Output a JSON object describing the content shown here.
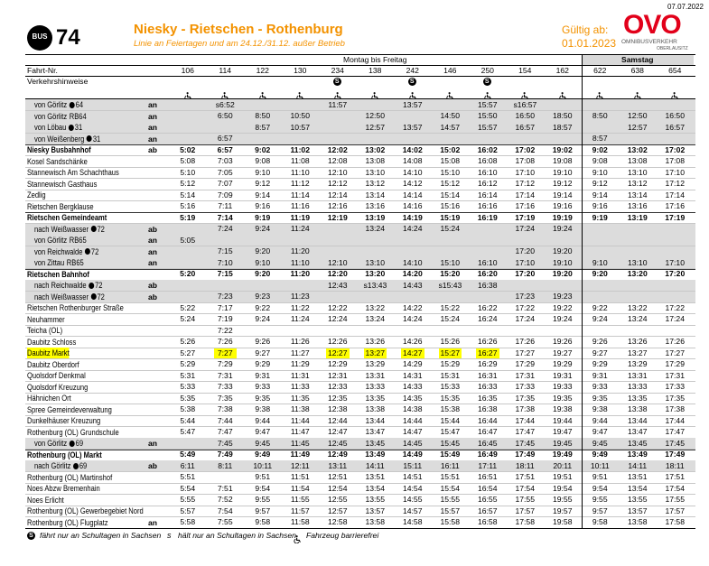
{
  "date": "07.07.2022",
  "header": {
    "badge": "BUS",
    "line": "74",
    "title": "Niesky - Rietschen - Rothenburg",
    "subtitle": "Linie an Feiertagen und am 24.12./31.12. außer Betrieb",
    "valid_label": "Gültig ab:",
    "valid_date": "01.01.2023",
    "logo": "OVO",
    "logo_sub1": "OMNIBUSVERKEHR",
    "logo_sub2": "OBERLAUSITZ"
  },
  "table": {
    "groups": [
      {
        "label": "Montag bis Freitag",
        "span": 11
      },
      {
        "label": "Samstag",
        "span": 3
      }
    ],
    "trip_label": "Fahrt-Nr.",
    "trips": [
      "106",
      "114",
      "122",
      "130",
      "234",
      "138",
      "242",
      "146",
      "250",
      "154",
      "162",
      "622",
      "638",
      "654"
    ],
    "notes_label": "Verkehrshinweise",
    "notes": [
      null,
      null,
      null,
      null,
      "S",
      null,
      "S",
      null,
      "S",
      null,
      null,
      null,
      null,
      null
    ],
    "rows": [
      {
        "stop": "von Görlitz",
        "icon": "bus",
        "line": "64",
        "dir": "an",
        "kind": "connection",
        "times": [
          null,
          "s6:52",
          null,
          null,
          "11:57",
          null,
          "13:57",
          null,
          "15:57",
          "s16:57",
          null,
          null,
          null,
          null
        ]
      },
      {
        "stop": "von Görlitz",
        "line": "RB64",
        "dir": "an",
        "kind": "connection",
        "times": [
          null,
          "6:50",
          "8:50",
          "10:50",
          null,
          "12:50",
          null,
          "14:50",
          "15:50",
          "16:50",
          "18:50",
          "8:50",
          "12:50",
          "16:50"
        ]
      },
      {
        "stop": "von Löbau",
        "icon": "bus",
        "line": "31",
        "dir": "an",
        "kind": "connection",
        "times": [
          null,
          null,
          "8:57",
          "10:57",
          null,
          "12:57",
          "13:57",
          "14:57",
          "15:57",
          "16:57",
          "18:57",
          null,
          "12:57",
          "16:57"
        ]
      },
      {
        "stop": "von Weißenberg",
        "icon": "bus",
        "line": "31",
        "dir": "an",
        "kind": "connection",
        "times": [
          null,
          "6:57",
          null,
          null,
          null,
          null,
          null,
          null,
          null,
          null,
          null,
          "8:57",
          null,
          null
        ]
      },
      {
        "stop": "Niesky Busbahnhof",
        "dir": "ab",
        "kind": "main",
        "times": [
          "5:02",
          "6:57",
          "9:02",
          "11:02",
          "12:02",
          "13:02",
          "14:02",
          "15:02",
          "16:02",
          "17:02",
          "19:02",
          "9:02",
          "13:02",
          "17:02"
        ]
      },
      {
        "stop": "Kosel Sandschänke",
        "times": [
          "5:08",
          "7:03",
          "9:08",
          "11:08",
          "12:08",
          "13:08",
          "14:08",
          "15:08",
          "16:08",
          "17:08",
          "19:08",
          "9:08",
          "13:08",
          "17:08"
        ]
      },
      {
        "stop": "Stannewisch Am Schachthaus",
        "times": [
          "5:10",
          "7:05",
          "9:10",
          "11:10",
          "12:10",
          "13:10",
          "14:10",
          "15:10",
          "16:10",
          "17:10",
          "19:10",
          "9:10",
          "13:10",
          "17:10"
        ]
      },
      {
        "stop": "Stannewisch Gasthaus",
        "times": [
          "5:12",
          "7:07",
          "9:12",
          "11:12",
          "12:12",
          "13:12",
          "14:12",
          "15:12",
          "16:12",
          "17:12",
          "19:12",
          "9:12",
          "13:12",
          "17:12"
        ]
      },
      {
        "stop": "Zedlig",
        "times": [
          "5:14",
          "7:09",
          "9:14",
          "11:14",
          "12:14",
          "13:14",
          "14:14",
          "15:14",
          "16:14",
          "17:14",
          "19:14",
          "9:14",
          "13:14",
          "17:14"
        ]
      },
      {
        "stop": "Rietschen Bergklause",
        "times": [
          "5:16",
          "7:11",
          "9:16",
          "11:16",
          "12:16",
          "13:16",
          "14:16",
          "15:16",
          "16:16",
          "17:16",
          "19:16",
          "9:16",
          "13:16",
          "17:16"
        ]
      },
      {
        "stop": "Rietschen Gemeindeamt",
        "kind": "main",
        "times": [
          "5:19",
          "7:14",
          "9:19",
          "11:19",
          "12:19",
          "13:19",
          "14:19",
          "15:19",
          "16:19",
          "17:19",
          "19:19",
          "9:19",
          "13:19",
          "17:19"
        ]
      },
      {
        "stop": "nach Weißwasser",
        "icon": "bus",
        "line": "72",
        "dir": "ab",
        "kind": "connection",
        "times": [
          null,
          "7:24",
          "9:24",
          "11:24",
          null,
          "13:24",
          "14:24",
          "15:24",
          null,
          "17:24",
          "19:24",
          null,
          null,
          null
        ]
      },
      {
        "stop": "von Görlitz",
        "line": "RB65",
        "dir": "an",
        "kind": "connection",
        "times": [
          "5:05",
          null,
          null,
          null,
          null,
          null,
          null,
          null,
          null,
          null,
          null,
          null,
          null,
          null
        ]
      },
      {
        "stop": "von Reichwalde",
        "icon": "bus",
        "line": "72",
        "dir": "an",
        "kind": "connection",
        "times": [
          null,
          "7:15",
          "9:20",
          "11:20",
          null,
          null,
          null,
          null,
          null,
          "17:20",
          "19:20",
          null,
          null,
          null
        ]
      },
      {
        "stop": "von Zittau",
        "line": "RB65",
        "dir": "an",
        "kind": "connection",
        "times": [
          null,
          "7:10",
          "9:10",
          "11:10",
          "12:10",
          "13:10",
          "14:10",
          "15:10",
          "16:10",
          "17:10",
          "19:10",
          "9:10",
          "13:10",
          "17:10"
        ]
      },
      {
        "stop": "Rietschen Bahnhof",
        "kind": "main",
        "times": [
          "5:20",
          "7:15",
          "9:20",
          "11:20",
          "12:20",
          "13:20",
          "14:20",
          "15:20",
          "16:20",
          "17:20",
          "19:20",
          "9:20",
          "13:20",
          "17:20"
        ]
      },
      {
        "stop": "nach Reichwalde",
        "icon": "bus",
        "line": "72",
        "dir": "ab",
        "kind": "connection",
        "times": [
          null,
          null,
          null,
          null,
          "12:43",
          "s13:43",
          "14:43",
          "s15:43",
          "16:38",
          null,
          null,
          null,
          null,
          null
        ]
      },
      {
        "stop": "nach Weißwasser",
        "icon": "bus",
        "line": "72",
        "dir": "ab",
        "kind": "connection",
        "times": [
          null,
          "7:23",
          "9:23",
          "11:23",
          null,
          null,
          null,
          null,
          null,
          "17:23",
          "19:23",
          null,
          null,
          null
        ]
      },
      {
        "stop": "Rietschen Rothenburger Straße",
        "times": [
          "5:22",
          "7:17",
          "9:22",
          "11:22",
          "12:22",
          "13:22",
          "14:22",
          "15:22",
          "16:22",
          "17:22",
          "19:22",
          "9:22",
          "13:22",
          "17:22"
        ]
      },
      {
        "stop": "Neuhammer",
        "times": [
          "5:24",
          "7:19",
          "9:24",
          "11:24",
          "12:24",
          "13:24",
          "14:24",
          "15:24",
          "16:24",
          "17:24",
          "19:24",
          "9:24",
          "13:24",
          "17:24"
        ]
      },
      {
        "stop": "Teicha (OL)",
        "times": [
          null,
          "7:22",
          null,
          null,
          null,
          null,
          null,
          null,
          null,
          null,
          null,
          null,
          null,
          null
        ]
      },
      {
        "stop": "Daubitz Schloss",
        "times": [
          "5:26",
          "7:26",
          "9:26",
          "11:26",
          "12:26",
          "13:26",
          "14:26",
          "15:26",
          "16:26",
          "17:26",
          "19:26",
          "9:26",
          "13:26",
          "17:26"
        ]
      },
      {
        "stop": "Daubitz Markt",
        "highlight": [
          1,
          4,
          5,
          6,
          7,
          8
        ],
        "times": [
          "5:27",
          "7:27",
          "9:27",
          "11:27",
          "12:27",
          "13:27",
          "14:27",
          "15:27",
          "16:27",
          "17:27",
          "19:27",
          "9:27",
          "13:27",
          "17:27"
        ]
      },
      {
        "stop": "Daubitz Oberdorf",
        "times": [
          "5:29",
          "7:29",
          "9:29",
          "11:29",
          "12:29",
          "13:29",
          "14:29",
          "15:29",
          "16:29",
          "17:29",
          "19:29",
          "9:29",
          "13:29",
          "17:29"
        ]
      },
      {
        "stop": "Quolsdorf Denkmal",
        "times": [
          "5:31",
          "7:31",
          "9:31",
          "11:31",
          "12:31",
          "13:31",
          "14:31",
          "15:31",
          "16:31",
          "17:31",
          "19:31",
          "9:31",
          "13:31",
          "17:31"
        ]
      },
      {
        "stop": "Quolsdorf Kreuzung",
        "times": [
          "5:33",
          "7:33",
          "9:33",
          "11:33",
          "12:33",
          "13:33",
          "14:33",
          "15:33",
          "16:33",
          "17:33",
          "19:33",
          "9:33",
          "13:33",
          "17:33"
        ]
      },
      {
        "stop": "Hähnichen Ort",
        "times": [
          "5:35",
          "7:35",
          "9:35",
          "11:35",
          "12:35",
          "13:35",
          "14:35",
          "15:35",
          "16:35",
          "17:35",
          "19:35",
          "9:35",
          "13:35",
          "17:35"
        ]
      },
      {
        "stop": "Spree Gemeindeverwaltung",
        "times": [
          "5:38",
          "7:38",
          "9:38",
          "11:38",
          "12:38",
          "13:38",
          "14:38",
          "15:38",
          "16:38",
          "17:38",
          "19:38",
          "9:38",
          "13:38",
          "17:38"
        ]
      },
      {
        "stop": "Dunkelhäuser Kreuzung",
        "times": [
          "5:44",
          "7:44",
          "9:44",
          "11:44",
          "12:44",
          "13:44",
          "14:44",
          "15:44",
          "16:44",
          "17:44",
          "19:44",
          "9:44",
          "13:44",
          "17:44"
        ]
      },
      {
        "stop": "Rothenburg (OL) Grundschule",
        "times": [
          "5:47",
          "7:47",
          "9:47",
          "11:47",
          "12:47",
          "13:47",
          "14:47",
          "15:47",
          "16:47",
          "17:47",
          "19:47",
          "9:47",
          "13:47",
          "17:47"
        ]
      },
      {
        "stop": "von Görlitz",
        "icon": "bus",
        "line": "69",
        "dir": "an",
        "kind": "connection",
        "times": [
          null,
          "7:45",
          "9:45",
          "11:45",
          "12:45",
          "13:45",
          "14:45",
          "15:45",
          "16:45",
          "17:45",
          "19:45",
          "9:45",
          "13:45",
          "17:45"
        ]
      },
      {
        "stop": "Rothenburg (OL) Markt",
        "kind": "main",
        "times": [
          "5:49",
          "7:49",
          "9:49",
          "11:49",
          "12:49",
          "13:49",
          "14:49",
          "15:49",
          "16:49",
          "17:49",
          "19:49",
          "9:49",
          "13:49",
          "17:49"
        ]
      },
      {
        "stop": "nach Görlitz",
        "icon": "bus",
        "line": "69",
        "dir": "ab",
        "kind": "connection",
        "times": [
          "6:11",
          "8:11",
          "10:11",
          "12:11",
          "13:11",
          "14:11",
          "15:11",
          "16:11",
          "17:11",
          "18:11",
          "20:11",
          "10:11",
          "14:11",
          "18:11"
        ]
      },
      {
        "stop": "Rothenburg (OL) Martinshof",
        "times": [
          "5:51",
          null,
          "9:51",
          "11:51",
          "12:51",
          "13:51",
          "14:51",
          "15:51",
          "16:51",
          "17:51",
          "19:51",
          "9:51",
          "13:51",
          "17:51"
        ]
      },
      {
        "stop": "Noes Abzw Bremenhain",
        "times": [
          "5:54",
          "7:51",
          "9:54",
          "11:54",
          "12:54",
          "13:54",
          "14:54",
          "15:54",
          "16:54",
          "17:54",
          "19:54",
          "9:54",
          "13:54",
          "17:54"
        ]
      },
      {
        "stop": "Noes Erlicht",
        "times": [
          "5:55",
          "7:52",
          "9:55",
          "11:55",
          "12:55",
          "13:55",
          "14:55",
          "15:55",
          "16:55",
          "17:55",
          "19:55",
          "9:55",
          "13:55",
          "17:55"
        ]
      },
      {
        "stop": "Rothenburg (OL) Gewerbegebiet Nord",
        "times": [
          "5:57",
          "7:54",
          "9:57",
          "11:57",
          "12:57",
          "13:57",
          "14:57",
          "15:57",
          "16:57",
          "17:57",
          "19:57",
          "9:57",
          "13:57",
          "17:57"
        ]
      },
      {
        "stop": "Rothenburg (OL) Flugplatz",
        "dir": "an",
        "times": [
          "5:58",
          "7:55",
          "9:58",
          "11:58",
          "12:58",
          "13:58",
          "14:58",
          "15:58",
          "16:58",
          "17:58",
          "19:58",
          "9:58",
          "13:58",
          "17:58"
        ]
      }
    ]
  },
  "legend": [
    {
      "symbol": "S",
      "text": "fährt nur an Schultagen in Sachsen"
    },
    {
      "symbol": "s",
      "text": "hält nur an Schultagen in Sachsen"
    },
    {
      "text": "Fahrzeug barrierefrei"
    }
  ]
}
